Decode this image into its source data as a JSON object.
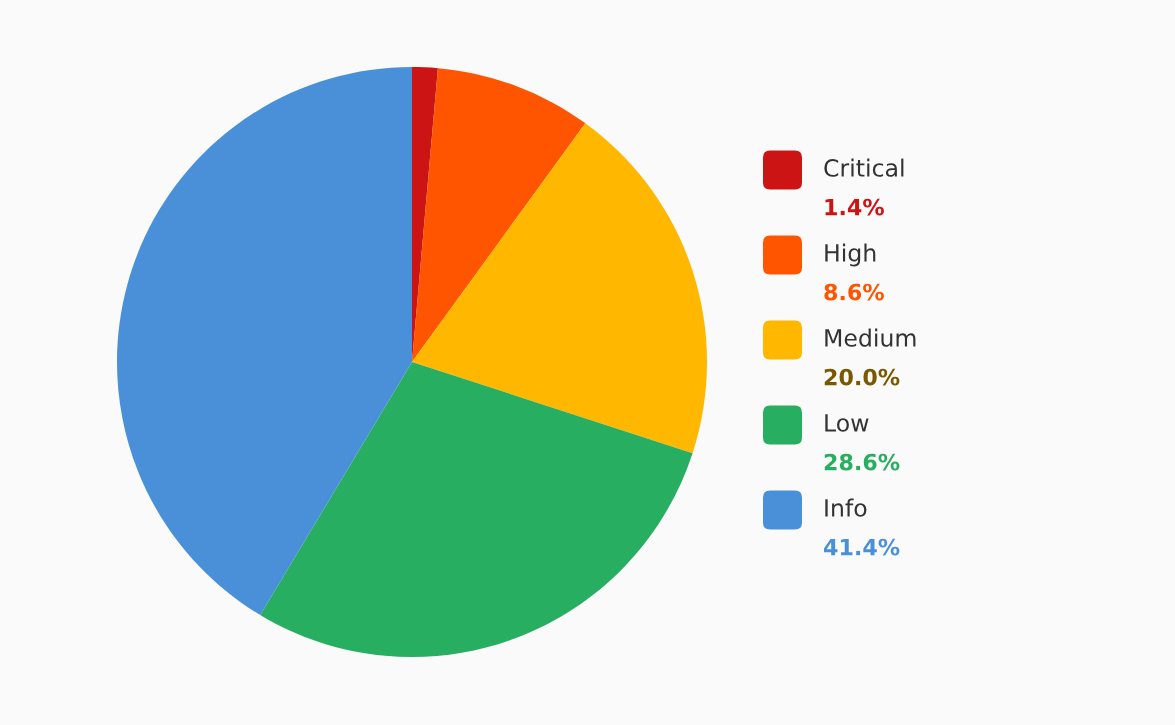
{
  "chart_data": {
    "type": "pie",
    "categories": [
      "Critical",
      "High",
      "Medium",
      "Low",
      "Info"
    ],
    "values": [
      1.4,
      8.6,
      20.0,
      28.6,
      41.4
    ],
    "colors": [
      "#cc1414",
      "#ff5500",
      "#ffb700",
      "#27ae60",
      "#4a90d9"
    ],
    "value_labels": [
      "1.4%",
      "8.6%",
      "20.0%",
      "28.6%",
      "41.4%"
    ],
    "legend": "right"
  }
}
